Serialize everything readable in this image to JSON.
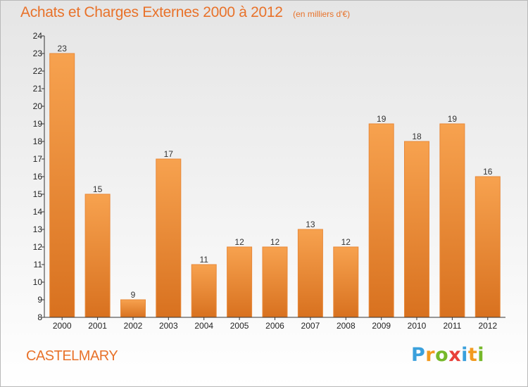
{
  "chart_data": {
    "type": "bar",
    "title": "Achats et Charges Externes 2000 à 2012",
    "subtitle": "(en milliers d'€)",
    "xlabel": "",
    "ylabel": "",
    "categories": [
      "2000",
      "2001",
      "2002",
      "2003",
      "2004",
      "2005",
      "2006",
      "2007",
      "2008",
      "2009",
      "2010",
      "2011",
      "2012"
    ],
    "values": [
      23,
      15,
      9,
      17,
      11,
      12,
      12,
      13,
      12,
      19,
      18,
      19,
      16
    ],
    "data_labels": [
      "23",
      "15",
      "9",
      "17",
      "11",
      "12",
      "12",
      "13",
      "12",
      "19",
      "18",
      "19",
      "16"
    ],
    "ylim": [
      8,
      24
    ],
    "yticks": [
      "8",
      "9",
      "10",
      "11",
      "12",
      "13",
      "14",
      "15",
      "16",
      "17",
      "18",
      "19",
      "20",
      "21",
      "22",
      "23",
      "24"
    ],
    "grid": false,
    "legend": "none",
    "bar_color_light": "#f7a24f",
    "bar_color_dark": "#d8711f",
    "bar_edge_color": "#e8893a"
  },
  "commune": "CASTELMARY",
  "brand": {
    "letters": [
      "P",
      "r",
      "o",
      "x",
      "i",
      "t",
      "i"
    ],
    "colors": [
      "#3aa0dc",
      "#f29a1f",
      "#76b82a",
      "#e8403a",
      "#3aa0dc",
      "#f29a1f",
      "#76b82a"
    ]
  },
  "accent_color": "#e8722a"
}
